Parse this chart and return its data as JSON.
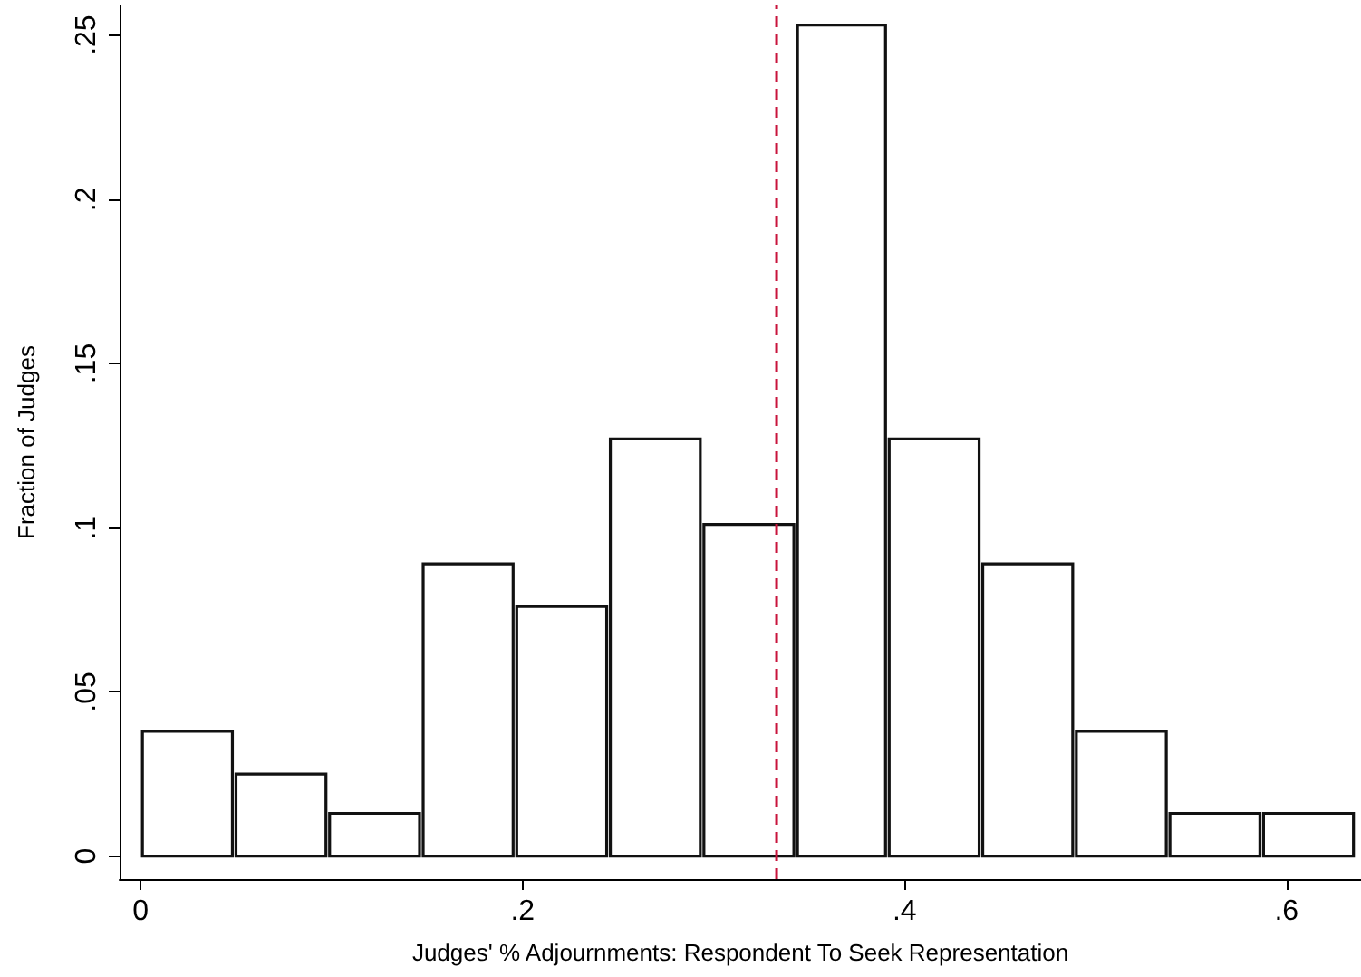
{
  "chart_data": {
    "type": "histogram",
    "xlabel": "Judges' % Adjournments: Respondent To Seek Representation",
    "ylabel": "Fraction of Judges",
    "bins": [
      0,
      0.049,
      0.098,
      0.147,
      0.196,
      0.245,
      0.294,
      0.343,
      0.391,
      0.44,
      0.489,
      0.538,
      0.587,
      0.636
    ],
    "values": [
      0.038,
      0.025,
      0.013,
      0.089,
      0.076,
      0.127,
      0.101,
      0.253,
      0.127,
      0.089,
      0.038,
      0.013,
      0.013
    ],
    "color": "#ffffff",
    "xlim": [
      -0.011,
      0.639
    ],
    "xticks": [
      0,
      {
        "value": 0.2,
        "label": ".2"
      },
      {
        "value": 0.4,
        "label": ".4"
      },
      {
        "value": 0.6,
        "label": ".6"
      }
    ],
    "ylim": [
      -0.007,
      0.259
    ],
    "yticks": [
      0,
      {
        "value": 0.05,
        "label": ".05"
      },
      {
        "value": 0.1,
        "label": ".1"
      },
      {
        "value": 0.15,
        "label": ".15"
      },
      {
        "value": 0.2,
        "label": ".2"
      },
      {
        "value": 0.25,
        "label": ".25"
      }
    ],
    "ref_lines": [
      {
        "axis": "x",
        "value": 0.333,
        "color": "#c8143c",
        "line_style": "dashed"
      }
    ],
    "grid": false
  }
}
